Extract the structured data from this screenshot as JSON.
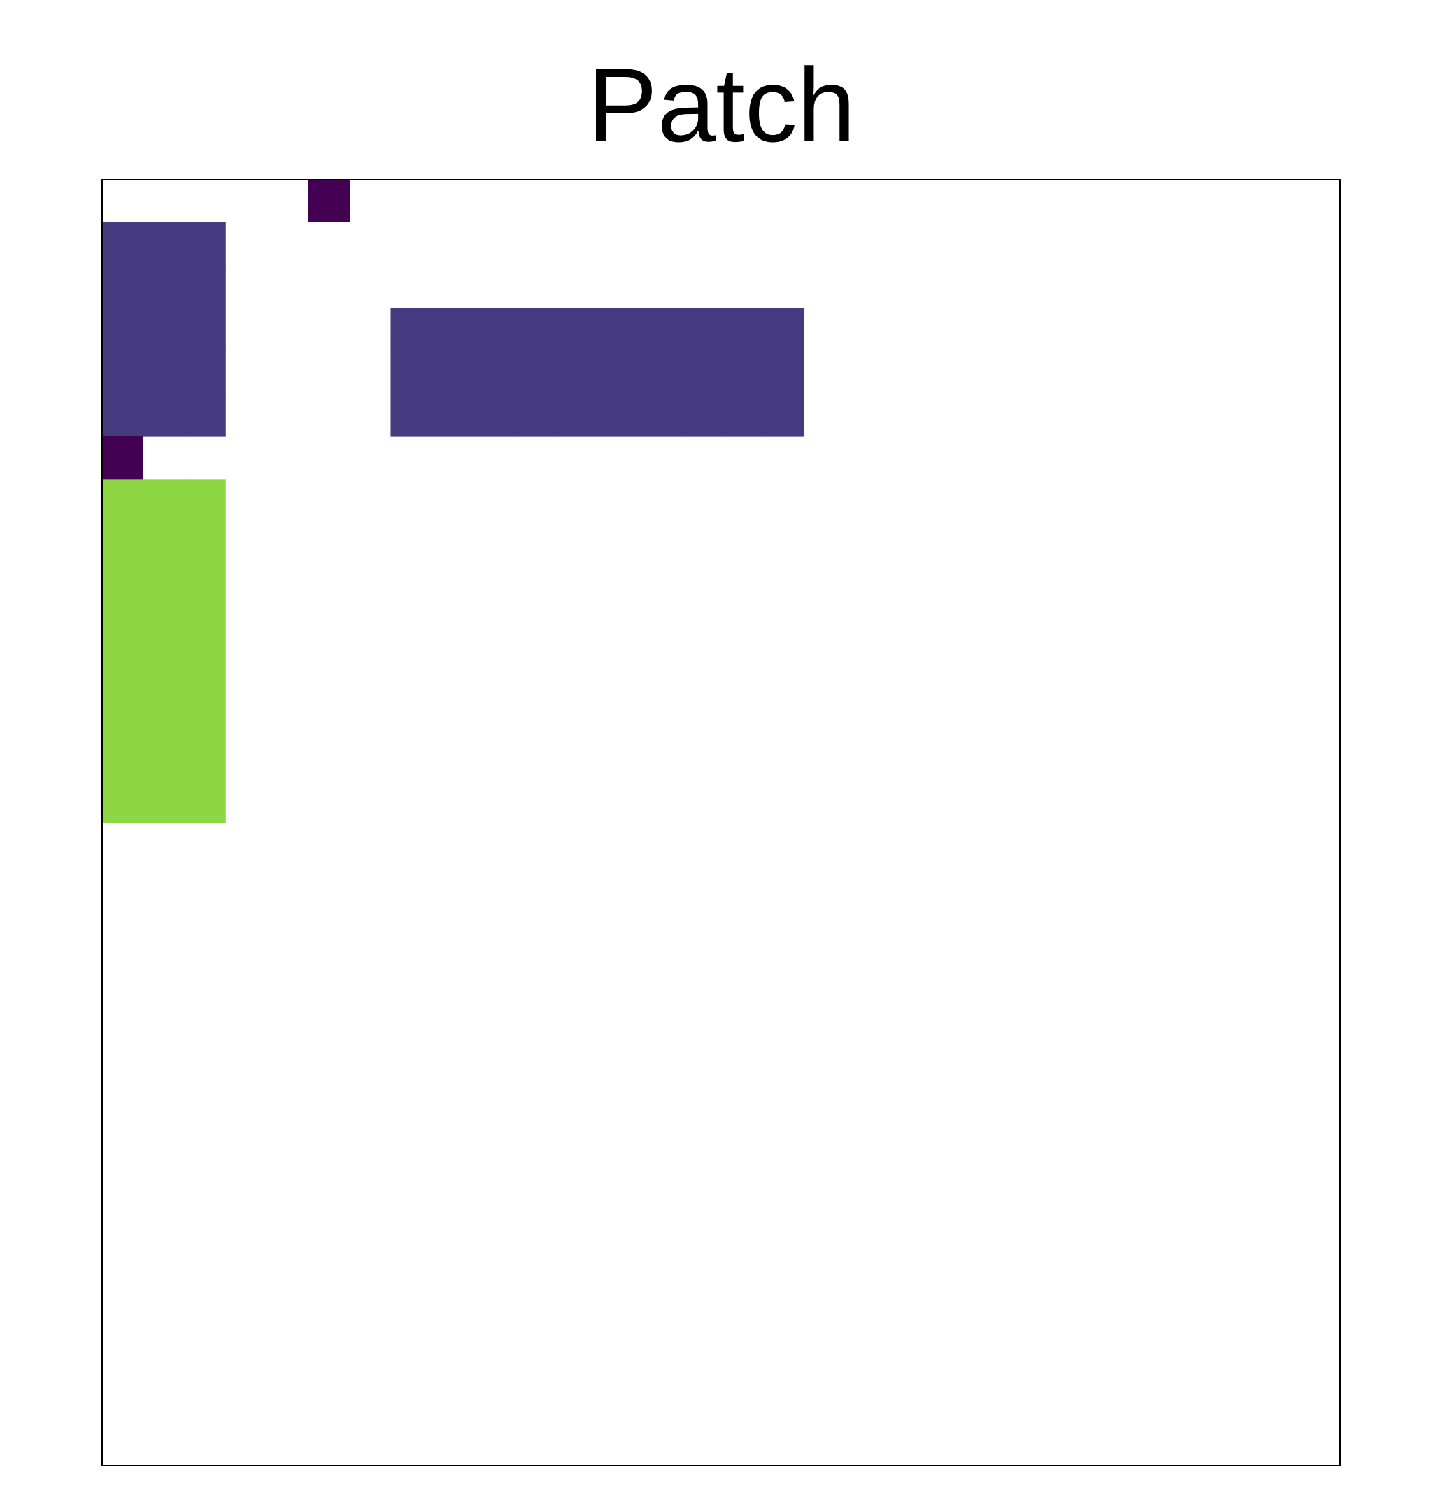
{
  "chart_data": {
    "type": "heatmap",
    "title": "Patch",
    "xlabel": "",
    "ylabel": "",
    "grid": false,
    "legend": "none",
    "n_rows": 30,
    "n_cols": 30,
    "empty_value": 0,
    "colors": {
      "1": "#440154",
      "2": "#463b81",
      "3": "#2e6890",
      "4": "#21908c",
      "5": "#38b87a",
      "6": "#8dd744",
      "7": "#fde725"
    },
    "rows": [
      "000001000000000000000000000000",
      "222000000000000000000000000000",
      "222000000000000000000000000000",
      "222000022222222220000000000000",
      "222000022222222220000000000000",
      "222000022222222220000000000000",
      "100000000000000000000000000000",
      "666000000000000000000000000000",
      "666000000000000000000000000000",
      "666000000000000000000000000000",
      "666000000000000000000000000000",
      "666000000000000000000000000000",
      "666000000000000000000000000000",
      "666000000000000000000000000000",
      "666000000000000000000000000000",
      "000000000000000000000000000000",
      "000000000000000000000000000000",
      "000000000000000000000000000000",
      "000000000000000000000000000000",
      "000000000000000000000000000000",
      "000000000000000000000000000000",
      "000000000000000000000000000000",
      "000000000000000000000000000000",
      "000000000000000000000000000000",
      "000000000000000000000000000000",
      "000000000000000000000000000000",
      "000000000000000000000000000000",
      "000000000000000000000000000000",
      "000000000000000000000000000000",
      "000000000000000000000000000000"
    ]
  }
}
